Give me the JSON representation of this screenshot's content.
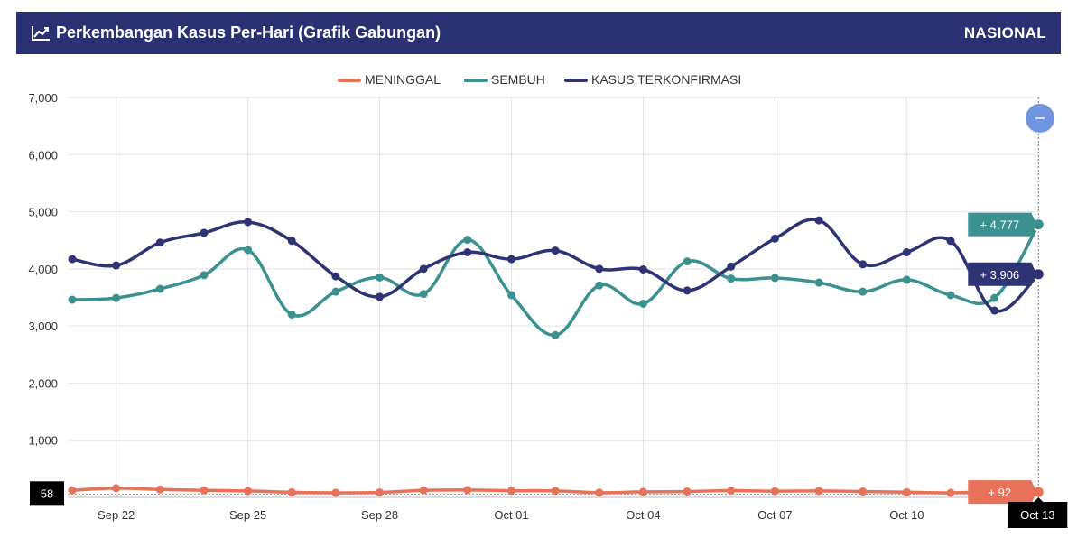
{
  "header": {
    "title": "Perkembangan Kasus Per-Hari (Grafik Gabungan)",
    "icon": "line-chart-icon",
    "region": "NASIONAL"
  },
  "zoom_button": {
    "icon": "minus-icon",
    "color": "#6f95e0"
  },
  "chart_data": {
    "type": "line",
    "title": "Perkembangan Kasus Per-Hari (Grafik Gabungan)",
    "x_dates": [
      "2020-09-21",
      "2020-09-22",
      "2020-09-23",
      "2020-09-24",
      "2020-09-25",
      "2020-09-26",
      "2020-09-27",
      "2020-09-28",
      "2020-09-29",
      "2020-09-30",
      "2020-10-01",
      "2020-10-02",
      "2020-10-03",
      "2020-10-04",
      "2020-10-05",
      "2020-10-06",
      "2020-10-07",
      "2020-10-08",
      "2020-10-09",
      "2020-10-10",
      "2020-10-11",
      "2020-10-12",
      "2020-10-13"
    ],
    "x_tick_labels": [
      "Sep 22",
      "Sep 25",
      "Sep 28",
      "Oct 01",
      "Oct 04",
      "Oct 07",
      "Oct 10"
    ],
    "x_tick_dates": [
      "2020-09-22",
      "2020-09-25",
      "2020-09-28",
      "2020-10-01",
      "2020-10-04",
      "2020-10-07",
      "2020-10-10"
    ],
    "ylim": [
      0,
      7000
    ],
    "y_ticks": [
      0,
      1000,
      2000,
      3000,
      4000,
      5000,
      6000,
      7000
    ],
    "y_tick_labels": [
      "0",
      "1,000",
      "2,000",
      "3,000",
      "4,000",
      "5,000",
      "6,000",
      "7,000"
    ],
    "grid": true,
    "legend_position": "top-center",
    "series": [
      {
        "name": "MENINGGAL",
        "color": "#e8715a",
        "values": [
          124,
          160,
          139,
          123,
          112,
          88,
          80,
          86,
          123,
          128,
          116,
          113,
          82,
          96,
          102,
          118,
          108,
          112,
          102,
          91,
          79,
          98,
          92
        ]
      },
      {
        "name": "SEMBUH",
        "color": "#3a9190",
        "values": [
          3460,
          3490,
          3650,
          3890,
          4330,
          3200,
          3600,
          3850,
          3560,
          4510,
          3540,
          2840,
          3710,
          3390,
          4130,
          3830,
          3840,
          3760,
          3600,
          3810,
          3540,
          3490,
          4777
        ]
      },
      {
        "name": "KASUS TERKONFIRMASI",
        "color": "#2e3376",
        "values": [
          4170,
          4060,
          4460,
          4630,
          4820,
          4490,
          3870,
          3510,
          4000,
          4290,
          4170,
          4320,
          4000,
          3990,
          3620,
          4040,
          4530,
          4850,
          4080,
          4290,
          4490,
          3270,
          3906
        ]
      }
    ],
    "hover": {
      "x_label": "Oct 13",
      "y_label": "58",
      "flags": [
        "+ 4,777",
        "+ 3,906",
        "+ 92"
      ]
    }
  }
}
